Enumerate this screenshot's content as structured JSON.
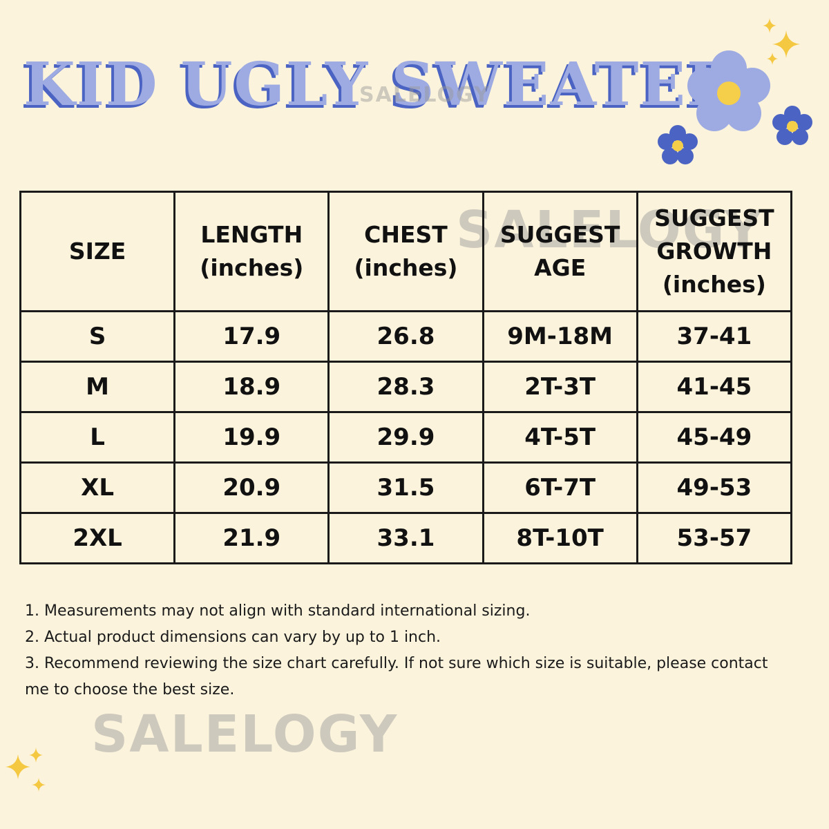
{
  "title": "KID UGLY SWEATER",
  "watermark": "SALELOGY",
  "table": {
    "headers": [
      [
        "SIZE"
      ],
      [
        "LENGTH",
        "(inches)"
      ],
      [
        "CHEST",
        "(inches)"
      ],
      [
        "SUGGEST",
        "AGE"
      ],
      [
        "SUGGEST",
        "GROWTH",
        "(inches)"
      ]
    ],
    "rows": [
      [
        "S",
        "17.9",
        "26.8",
        "9M-18M",
        "37-41"
      ],
      [
        "M",
        "18.9",
        "28.3",
        "2T-3T",
        "41-45"
      ],
      [
        "L",
        "19.9",
        "29.9",
        "4T-5T",
        "45-49"
      ],
      [
        "XL",
        "20.9",
        "31.5",
        "6T-7T",
        "49-53"
      ],
      [
        "2XL",
        "21.9",
        "33.1",
        "8T-10T",
        "53-57"
      ]
    ]
  },
  "notes": [
    "1. Measurements may not align with standard international sizing.",
    "2. Actual product dimensions can vary by up to 1 inch.",
    "3. Recommend reviewing the size chart carefully. If not sure which size is suitable, please contact me to choose the best size."
  ],
  "colors": {
    "background": "#fbf3dc",
    "title": "#9eabe2",
    "title_shadow": "#4b63c2",
    "flower": "#4b63c2",
    "flower_light": "#9eabe2",
    "sparkle": "#f5c842"
  }
}
